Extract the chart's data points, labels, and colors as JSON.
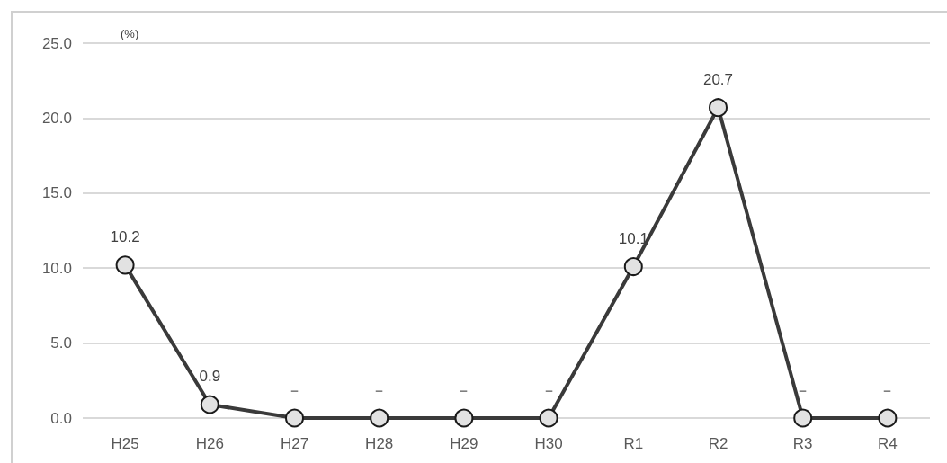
{
  "chart_data": {
    "type": "line",
    "ylabel": "(%)",
    "categories": [
      "H25",
      "H26",
      "H27",
      "H28",
      "H29",
      "H30",
      "R1",
      "R2",
      "R3",
      "R4"
    ],
    "series": [
      {
        "color": "#3a3a3a",
        "values": [
          10.2,
          0.9,
          0,
          0,
          0,
          0,
          10.1,
          20.7,
          0,
          0
        ],
        "value_labels": [
          "10.2",
          "0.9",
          "－",
          "－",
          "－",
          "－",
          "10.1",
          "20.7",
          "－",
          "－"
        ]
      }
    ],
    "ylim": [
      0,
      25
    ],
    "yticks": [
      {
        "value": 0,
        "label": "0.0"
      },
      {
        "value": 5,
        "label": "5.0"
      },
      {
        "value": 10,
        "label": "10.0"
      },
      {
        "value": 15,
        "label": "15.0"
      },
      {
        "value": 20,
        "label": "20.0"
      },
      {
        "value": 25,
        "label": "25.0"
      }
    ],
    "grid": "y",
    "marker": "circle",
    "line_style": "solid"
  }
}
